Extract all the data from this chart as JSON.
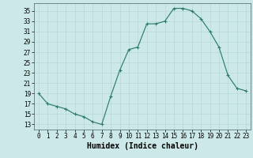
{
  "x": [
    0,
    1,
    2,
    3,
    4,
    5,
    6,
    7,
    8,
    9,
    10,
    11,
    12,
    13,
    14,
    15,
    16,
    17,
    18,
    19,
    20,
    21,
    22,
    23
  ],
  "y": [
    19,
    17,
    16.5,
    16,
    15,
    14.5,
    13.5,
    13,
    18.5,
    23.5,
    27.5,
    28,
    32.5,
    32.5,
    33,
    35.5,
    35.5,
    35,
    33.5,
    31,
    28,
    22.5,
    20,
    19.5
  ],
  "xlabel": "Humidex (Indice chaleur)",
  "xlim": [
    -0.5,
    23.5
  ],
  "ylim": [
    12,
    36.5
  ],
  "yticks": [
    13,
    15,
    17,
    19,
    21,
    23,
    25,
    27,
    29,
    31,
    33,
    35
  ],
  "xticks": [
    0,
    1,
    2,
    3,
    4,
    5,
    6,
    7,
    8,
    9,
    10,
    11,
    12,
    13,
    14,
    15,
    16,
    17,
    18,
    19,
    20,
    21,
    22,
    23
  ],
  "line_color": "#2e7d6e",
  "marker": "+",
  "bg_color": "#cce8e8",
  "grid_color": "#b8d8d8",
  "tick_fontsize": 5.5,
  "label_fontsize": 7
}
